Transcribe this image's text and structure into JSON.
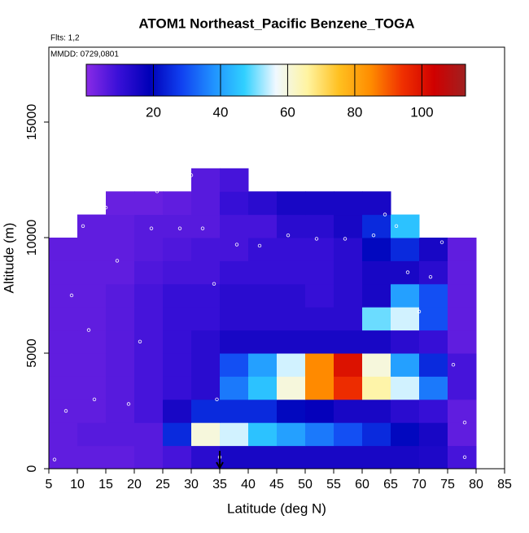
{
  "chart_data": {
    "type": "heatmap",
    "title": "ATOM1 Northeast_Pacific Benzene_TOGA",
    "annotations": [
      "Flts: 1,2",
      "MMDD: 0729,0801"
    ],
    "xlabel": "Latitude (deg N)",
    "ylabel": "Altitude (m)",
    "xlim": [
      5,
      85
    ],
    "xticks": [
      5,
      10,
      15,
      20,
      25,
      30,
      35,
      40,
      45,
      50,
      55,
      60,
      65,
      70,
      75,
      80,
      85
    ],
    "ylim": [
      0,
      18240
    ],
    "yticks": [
      0,
      5000,
      10000,
      15000
    ],
    "x_edges": [
      5,
      10,
      15,
      20,
      25,
      30,
      35,
      40,
      45,
      50,
      55,
      60,
      65,
      70,
      75,
      80
    ],
    "y_edges": [
      0,
      1000,
      2000,
      3000,
      4000,
      5000,
      6000,
      7000,
      8000,
      9000,
      10000,
      11000,
      12000,
      13000
    ],
    "z": [
      [
        5,
        5,
        5,
        6,
        8,
        12,
        15,
        15,
        15,
        15,
        15,
        15,
        15,
        14,
        8
      ],
      [
        5,
        6,
        6,
        6,
        25,
        60,
        55,
        45,
        40,
        35,
        30,
        25,
        20,
        15,
        5
      ],
      [
        5,
        5,
        6,
        8,
        15,
        25,
        25,
        25,
        20,
        18,
        15,
        15,
        12,
        10,
        5
      ],
      [
        5,
        5,
        6,
        8,
        10,
        12,
        35,
        45,
        60,
        85,
        95,
        65,
        55,
        35,
        8
      ],
      [
        5,
        5,
        6,
        8,
        10,
        12,
        30,
        40,
        55,
        85,
        100,
        60,
        40,
        25,
        8
      ],
      [
        5,
        5,
        6,
        8,
        10,
        12,
        15,
        15,
        15,
        15,
        15,
        15,
        12,
        10,
        5
      ],
      [
        5,
        5,
        6,
        8,
        10,
        10,
        12,
        12,
        12,
        12,
        12,
        50,
        55,
        30,
        5
      ],
      [
        5,
        5,
        6,
        8,
        10,
        10,
        12,
        12,
        12,
        10,
        12,
        15,
        40,
        30,
        5
      ],
      [
        5,
        5,
        5,
        7,
        8,
        8,
        10,
        10,
        10,
        10,
        12,
        15,
        15,
        12,
        5
      ],
      [
        5,
        5,
        5,
        6,
        7,
        8,
        8,
        10,
        10,
        10,
        12,
        20,
        25,
        15,
        5
      ],
      [
        null,
        5,
        5,
        6,
        6,
        6,
        8,
        8,
        12,
        12,
        15,
        25,
        45,
        null,
        null
      ],
      [
        null,
        null,
        4,
        4,
        5,
        6,
        10,
        12,
        15,
        15,
        15,
        15,
        null,
        null,
        null
      ],
      [
        null,
        null,
        null,
        null,
        null,
        6,
        8,
        null,
        null,
        null,
        null,
        null,
        null,
        null,
        null
      ]
    ],
    "clim": [
      0,
      113
    ],
    "cticks": [
      20,
      40,
      60,
      80,
      100
    ],
    "colors": [
      "#8a2be6",
      "#3a10d8",
      "#0000b8",
      "#1040f0",
      "#2090ff",
      "#30d0ff",
      "#f0f8ff",
      "#fff4a0",
      "#ffc020",
      "#ff8c00",
      "#f03000",
      "#d00000",
      "#a02020"
    ],
    "track_x": [
      6,
      8,
      9,
      11,
      12,
      13,
      15,
      17,
      19,
      21,
      23,
      24,
      26,
      28,
      30,
      32,
      34,
      34.5,
      35,
      38,
      42,
      47,
      52,
      57,
      62,
      64,
      66,
      68,
      70,
      72,
      74,
      76,
      78,
      78
    ],
    "track_y": [
      400,
      2500,
      7500,
      10500,
      6000,
      3000,
      11300,
      9000,
      2800,
      5500,
      10400,
      12000,
      12700,
      10400,
      12700,
      10400,
      8000,
      3000,
      500,
      9700,
      9650,
      10100,
      9950,
      9950,
      10100,
      11000,
      10500,
      8500,
      6800,
      8300,
      9800,
      4500,
      2000,
      500
    ],
    "track_color": "#ffffff",
    "arrow_x": 35
  }
}
